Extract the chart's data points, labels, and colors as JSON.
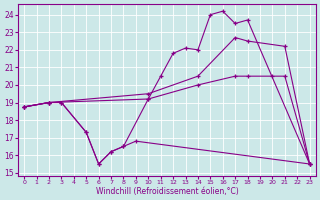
{
  "xlabel": "Windchill (Refroidissement éolien,°C)",
  "xlim": [
    -0.5,
    23.5
  ],
  "ylim": [
    14.8,
    24.6
  ],
  "xticks": [
    0,
    1,
    2,
    3,
    4,
    5,
    6,
    7,
    8,
    9,
    10,
    11,
    12,
    13,
    14,
    15,
    16,
    17,
    18,
    19,
    20,
    21,
    22,
    23
  ],
  "yticks": [
    15,
    16,
    17,
    18,
    19,
    20,
    21,
    22,
    23,
    24
  ],
  "background_color": "#cce8e8",
  "line_color": "#880088",
  "series": [
    {
      "x": [
        0,
        2,
        3,
        5,
        6,
        7,
        8,
        9,
        23
      ],
      "y": [
        18.75,
        19.0,
        19.0,
        17.3,
        15.5,
        16.2,
        16.5,
        16.8,
        15.5
      ]
    },
    {
      "x": [
        0,
        2,
        3,
        5,
        6,
        7,
        8,
        10,
        11,
        12,
        13,
        14,
        15,
        16,
        17,
        18,
        23
      ],
      "y": [
        18.75,
        19.0,
        19.0,
        17.3,
        15.5,
        16.2,
        16.5,
        19.2,
        20.5,
        21.8,
        22.1,
        22.0,
        24.0,
        24.2,
        23.5,
        23.7,
        15.5
      ]
    },
    {
      "x": [
        0,
        2,
        10,
        14,
        17,
        18,
        21,
        23
      ],
      "y": [
        18.75,
        19.0,
        19.5,
        20.5,
        22.7,
        22.5,
        22.2,
        15.5
      ]
    },
    {
      "x": [
        0,
        2,
        10,
        14,
        17,
        18,
        20,
        21,
        23
      ],
      "y": [
        18.75,
        19.0,
        19.2,
        20.0,
        20.5,
        20.5,
        20.5,
        20.5,
        15.5
      ]
    }
  ]
}
